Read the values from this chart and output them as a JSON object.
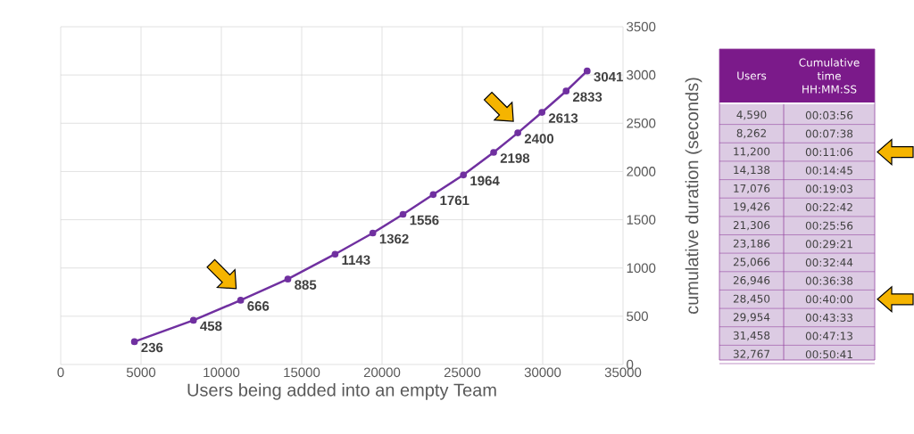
{
  "chart_data": [
    {
      "type": "line",
      "xlabel": "Users being added into an empty Team",
      "ylabel": "cumulative duration (seconds)",
      "x": [
        4590,
        8262,
        11200,
        14138,
        17076,
        19426,
        21306,
        23186,
        25066,
        26946,
        28450,
        29954,
        31458,
        32767
      ],
      "values": [
        236,
        458,
        666,
        885,
        1143,
        1362,
        1556,
        1761,
        1964,
        2198,
        2400,
        2613,
        2833,
        3041
      ],
      "color": "#7030a0",
      "xlim": [
        0,
        35000
      ],
      "ylim": [
        0,
        3500
      ],
      "xticks": [
        0,
        5000,
        10000,
        15000,
        20000,
        25000,
        30000,
        35000
      ],
      "yticks": [
        0,
        500,
        1000,
        1500,
        2000,
        2500,
        3000,
        3500
      ],
      "grid": true,
      "marker": "circle",
      "data_labels": true
    },
    {
      "type": "other",
      "annotations": [
        "Users",
        "Cumulative time HH:MM:SS",
        "4,590",
        "00:03:56",
        "8,262",
        "00:07:38",
        "11,200",
        "00:11:06",
        "14,138",
        "00:14:45",
        "17,076",
        "00:19:03",
        "19,426",
        "00:22:42",
        "21,306",
        "00:25:56",
        "23,186",
        "00:29:21",
        "25,066",
        "00:32:44",
        "26,946",
        "00:36:38",
        "28,450",
        "00:40:00",
        "29,954",
        "00:43:33",
        "31,458",
        "00:47:13",
        "32,767",
        "00:50:41"
      ]
    }
  ]
}
